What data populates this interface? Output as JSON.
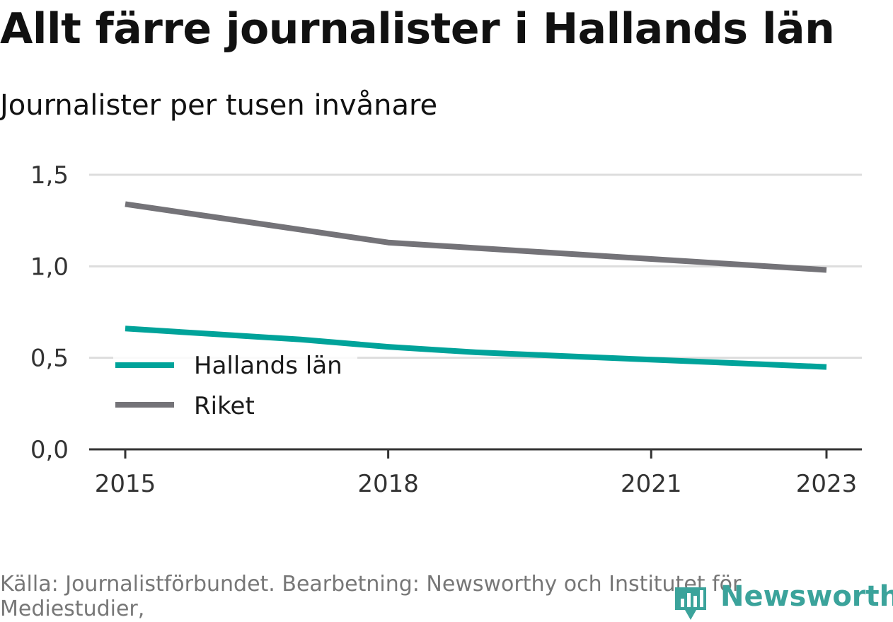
{
  "title": "Allt färre journalister i Hallands län",
  "subtitle": "Journalister per tusen invånare",
  "source": "Källa: Journalistförbundet. Bearbetning: Newsworthy och Institutet för Mediestudier,",
  "logo": {
    "name": "Newsworthy",
    "icon": "bar-chart-pin-icon",
    "color": "#3ba39b"
  },
  "chart_data": {
    "type": "line",
    "x": [
      2015,
      2016,
      2017,
      2018,
      2019,
      2020,
      2021,
      2022,
      2023
    ],
    "x_ticks": [
      "2015",
      "2018",
      "2021",
      "2023"
    ],
    "y_ticks": [
      "0,0",
      "0,5",
      "1,0",
      "1,5"
    ],
    "ylim": [
      0,
      1.5
    ],
    "grid": true,
    "legend_position": "left",
    "series": [
      {
        "name": "Hallands län",
        "color": "#00a39a",
        "values": [
          0.66,
          0.63,
          0.6,
          0.56,
          0.53,
          0.51,
          0.49,
          0.47,
          0.45
        ]
      },
      {
        "name": "Riket",
        "color": "#747378",
        "values": [
          1.34,
          1.27,
          1.2,
          1.13,
          1.1,
          1.07,
          1.04,
          1.01,
          0.98
        ]
      }
    ]
  }
}
